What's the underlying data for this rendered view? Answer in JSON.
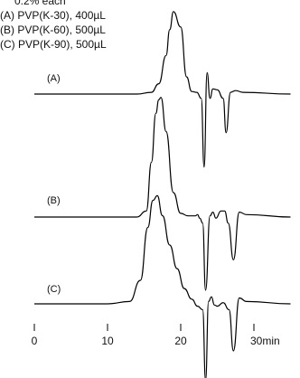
{
  "legend": {
    "header": "0.2% each",
    "lines": [
      "(A) PVP(K-30), 400µL",
      "(B) PVP(K-60),   500µL",
      "(C) PVP(K-90),   500µL"
    ]
  },
  "chart_data": {
    "type": "line",
    "title": "",
    "xlabel": "",
    "ylabel": "",
    "x_unit": "min",
    "xlim": [
      -0.3,
      35
    ],
    "xticks": [
      0,
      10,
      20,
      30
    ],
    "xtick_labels": [
      "0",
      "10",
      "20",
      "30min"
    ],
    "grid": false,
    "series": [
      {
        "name": "(A)",
        "label": "(A)",
        "color": "#000000",
        "x": [
          0,
          10,
          14,
          16,
          17,
          18,
          18.5,
          19,
          20,
          20.8,
          21.5,
          22.2,
          22.8,
          23.2,
          23.6,
          24,
          24.4,
          25,
          25.8,
          26.2,
          26.8,
          27.5,
          28.5,
          35
        ],
        "y": [
          0,
          0,
          0,
          0.02,
          0.12,
          0.45,
          0.75,
          0.96,
          0.78,
          0.2,
          0.03,
          0.02,
          -0.05,
          -0.85,
          0.25,
          -0.05,
          0.06,
          0.05,
          -0.05,
          -0.45,
          0.02,
          0.04,
          0.02,
          0
        ]
      },
      {
        "name": "(B)",
        "label": "(B)",
        "color": "#000000",
        "x": [
          0,
          10,
          14,
          15.3,
          16,
          16.6,
          17,
          17.3,
          18,
          19,
          20,
          21,
          22,
          22.3,
          22.6,
          23,
          23.4,
          24,
          24.4,
          24.8,
          25.5,
          26,
          26.5,
          27.2,
          28,
          29,
          35
        ],
        "y": [
          0,
          0,
          0,
          0.05,
          0.45,
          0.85,
          0.96,
          0.98,
          0.7,
          0.2,
          0.03,
          0.01,
          0.01,
          0.02,
          -0.01,
          -0.05,
          -0.6,
          0.01,
          0.04,
          -0.01,
          0.05,
          0.05,
          -0.05,
          -0.35,
          0.04,
          0.02,
          0
        ]
      },
      {
        "name": "(C)",
        "label": "(C)",
        "color": "#000000",
        "x": [
          0,
          10,
          13,
          14.5,
          15.5,
          16.2,
          16.8,
          17.5,
          18.5,
          19.5,
          20.5,
          21.5,
          22.3,
          23,
          23.4,
          23.8,
          24.2,
          24.6,
          25,
          25.8,
          26.6,
          27.2,
          28,
          29,
          35
        ],
        "y": [
          0,
          0,
          0.02,
          0.2,
          0.65,
          0.88,
          0.92,
          0.75,
          0.5,
          0.3,
          0.13,
          0.04,
          -0.02,
          -0.05,
          -0.65,
          0.02,
          0.06,
          -0.01,
          -0.02,
          0.01,
          -0.05,
          -0.4,
          0.05,
          0.02,
          0
        ]
      }
    ]
  }
}
